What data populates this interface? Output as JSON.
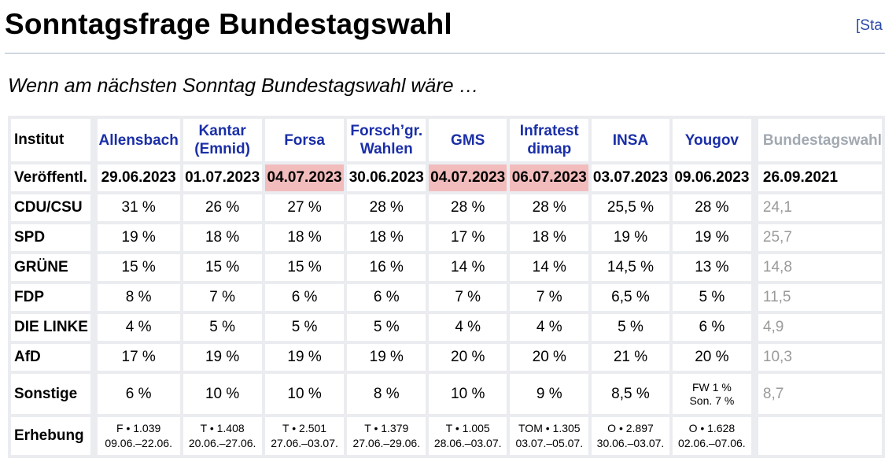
{
  "header": {
    "title": "Sonntagsfrage Bundestagswahl",
    "stat_link": "[Sta"
  },
  "subtitle": "Wenn am nächsten Sonntag Bundestagswahl wäre …",
  "table": {
    "label_header": "Institut",
    "institutes": [
      "Allensbach",
      "Kantar (Emnid)",
      "Forsa",
      "Forsch’gr. Wahlen",
      "GMS",
      "Infratest dimap",
      "INSA",
      "Yougov"
    ],
    "election_header": "Bundestagswahl",
    "rows": {
      "published": {
        "label": "Veröffentl.",
        "values": [
          "29.06.2023",
          "01.07.2023",
          "04.07.2023",
          "30.06.2023",
          "04.07.2023",
          "06.07.2023",
          "03.07.2023",
          "09.06.2023"
        ],
        "election": "26.09.2021"
      },
      "cdu": {
        "label": "CDU/CSU",
        "values": [
          "31 %",
          "26 %",
          "27 %",
          "28 %",
          "28 %",
          "28 %",
          "25,5 %",
          "28 %"
        ],
        "election": "24,1"
      },
      "spd": {
        "label": "SPD",
        "values": [
          "19 %",
          "18 %",
          "18 %",
          "18 %",
          "17 %",
          "18 %",
          "19 %",
          "19 %"
        ],
        "election": "25,7"
      },
      "gruene": {
        "label": "GRÜNE",
        "values": [
          "15 %",
          "15 %",
          "15 %",
          "16 %",
          "14 %",
          "14 %",
          "14,5 %",
          "13 %"
        ],
        "election": "14,8"
      },
      "fdp": {
        "label": "FDP",
        "values": [
          "8 %",
          "7 %",
          "6 %",
          "6 %",
          "7 %",
          "7 %",
          "6,5 %",
          "5 %"
        ],
        "election": "11,5"
      },
      "linke": {
        "label": "DIE LINKE",
        "values": [
          "4 %",
          "5 %",
          "5 %",
          "5 %",
          "4 %",
          "4 %",
          "5 %",
          "6 %"
        ],
        "election": "4,9"
      },
      "afd": {
        "label": "AfD",
        "values": [
          "17 %",
          "19 %",
          "19 %",
          "19 %",
          "20 %",
          "20 %",
          "21 %",
          "20 %"
        ],
        "election": "10,3"
      },
      "sonstige": {
        "label": "Sonstige",
        "values": [
          "6 %",
          "10 %",
          "10 %",
          "8 %",
          "10 %",
          "9 %",
          "8,5 %"
        ],
        "yougov_fw": "FW 1 %",
        "yougov_son": "Son. 7 %",
        "election": "8,7"
      },
      "erhebung": {
        "label": "Erhebung",
        "samples": [
          "F • 1.039",
          "T • 1.408",
          "T • 2.501",
          "T • 1.379",
          "T • 1.005",
          "TOM • 1.305",
          "O • 2.897",
          "O • 1.628"
        ],
        "periods": [
          "09.06.–22.06.",
          "20.06.–27.06.",
          "27.06.–03.07.",
          "27.06.–29.06.",
          "28.06.–03.07.",
          "03.07.–05.07.",
          "30.06.–03.07.",
          "02.06.–07.06."
        ]
      }
    },
    "highlight_color": "#f3bcbc"
  }
}
